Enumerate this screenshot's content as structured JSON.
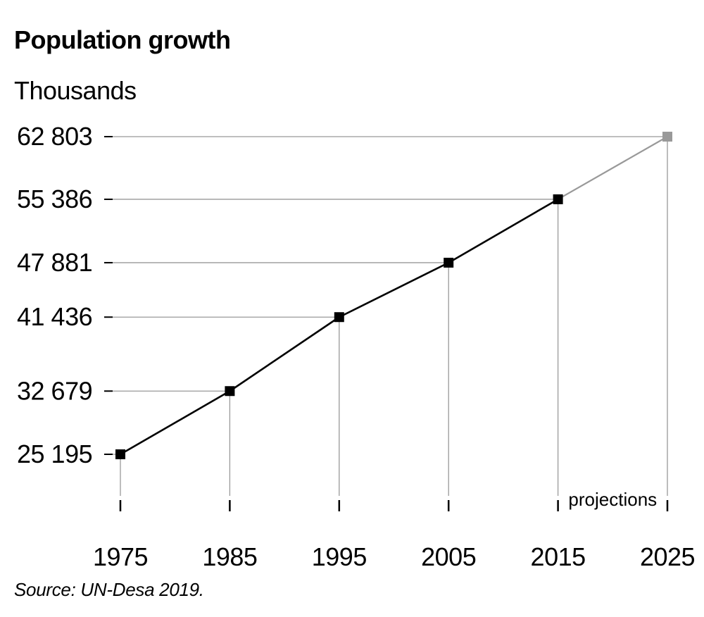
{
  "chart_data": {
    "type": "line",
    "title": "Population growth",
    "ylabel": "Thousands",
    "source": "Source: UN-Desa 2019.",
    "annotation": "projections",
    "ylim": [
      25195,
      62803
    ],
    "grid": false,
    "series": [
      {
        "points": [
          {
            "x": "1975",
            "y": 25195,
            "label": "25 195",
            "projection": false
          },
          {
            "x": "1985",
            "y": 32679,
            "label": "32 679",
            "projection": false
          },
          {
            "x": "1995",
            "y": 41436,
            "label": "41 436",
            "projection": false
          },
          {
            "x": "2005",
            "y": 47881,
            "label": "47 881",
            "projection": false
          },
          {
            "x": "2015",
            "y": 55386,
            "label": "55 386",
            "projection": false
          },
          {
            "x": "2025",
            "y": 62803,
            "label": "62 803",
            "projection": true
          }
        ]
      }
    ],
    "colors": {
      "actual": "#000000",
      "projection": "#999999",
      "guide": "#999999"
    }
  }
}
